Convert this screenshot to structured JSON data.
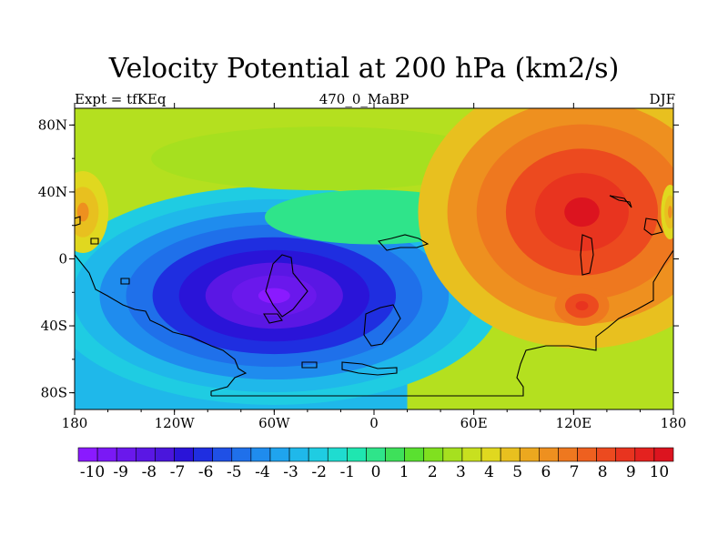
{
  "chart_data": {
    "type": "heatmap",
    "title": "Velocity Potential at 200 hPa (km2/s)",
    "left_label": "Expt = tfKEq",
    "center_label": "470_0_MaBP",
    "right_label": "DJF",
    "x_ticks": [
      "180",
      "120W",
      "60W",
      "0",
      "60E",
      "120E",
      "180"
    ],
    "y_ticks": [
      "80N",
      "40N",
      "0",
      "40S",
      "80S"
    ],
    "xlim": [
      -180,
      180
    ],
    "ylim": [
      -90,
      90
    ],
    "colorbar": {
      "labels": [
        "-10",
        "-9",
        "-8",
        "-7",
        "-6",
        "-5",
        "-4",
        "-3",
        "-2",
        "-1",
        "0",
        "1",
        "2",
        "3",
        "4",
        "5",
        "6",
        "7",
        "8",
        "9",
        "10"
      ],
      "range": [
        -10.5,
        10.5
      ],
      "colors": [
        "#8a1aff",
        "#7a19f5",
        "#6a18ec",
        "#5a17e4",
        "#4a16dc",
        "#2a14d8",
        "#1f2ee0",
        "#1f50e6",
        "#1f70ea",
        "#1f8cee",
        "#1fa4ee",
        "#1fb8ea",
        "#1fcce2",
        "#1fdcd0",
        "#1fe6b0",
        "#2fe48a",
        "#3ee05a",
        "#5ae030",
        "#80e01f",
        "#a6e01f",
        "#c8e01f",
        "#e0d81f",
        "#e8c01f",
        "#eca81f",
        "#ee901f",
        "#ee781f",
        "#ee601f",
        "#ec4a1f",
        "#e8341f",
        "#e4221f",
        "#dc141f"
      ]
    },
    "field_centers": [
      {
        "lon": -45,
        "lat": -22,
        "value": -10
      },
      {
        "lon": 125,
        "lat": 28,
        "value": 10
      },
      {
        "lon": -175,
        "lat": 28,
        "value": 6
      }
    ]
  }
}
